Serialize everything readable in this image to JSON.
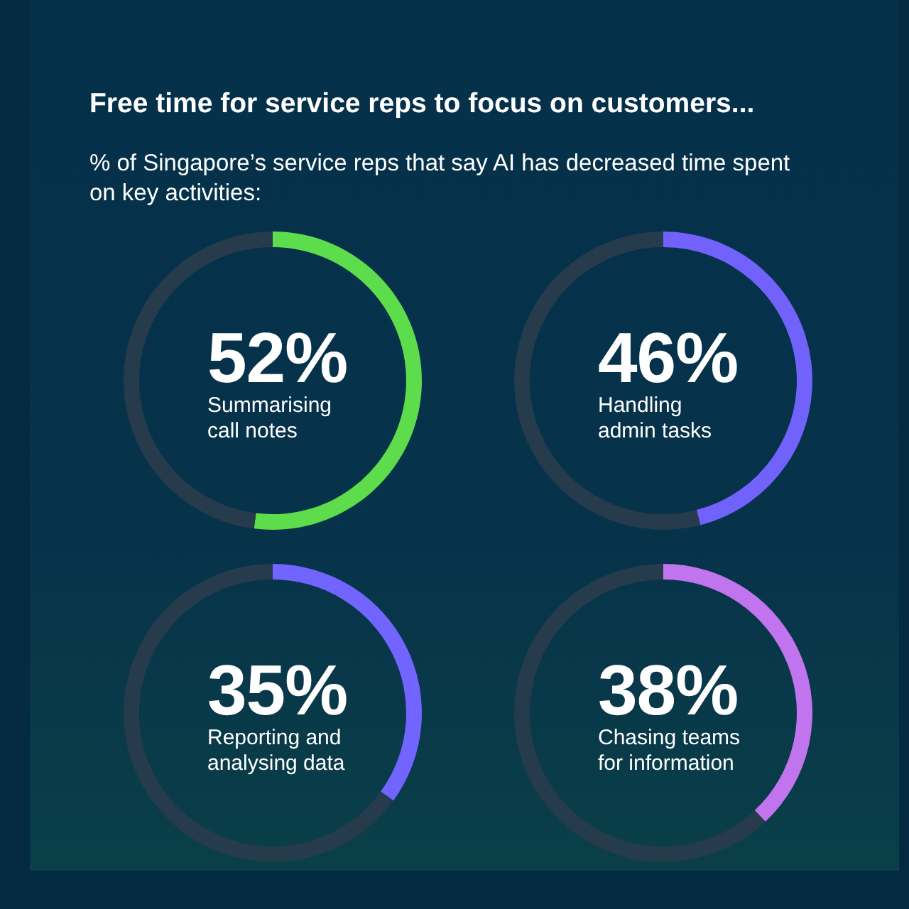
{
  "chart_data": [
    {
      "type": "other",
      "title": "Free time for service reps to focus on customers...",
      "subtitle": "% of Singapore’s service reps that say AI has decreased time spent on key activities:"
    },
    {
      "type": "donut",
      "title": "Summarising call notes",
      "categories": [
        null,
        null
      ],
      "values": [
        52,
        48
      ],
      "colors": [
        "#5ddc4c",
        "#263b4b"
      ],
      "value_labels": [
        "52%",
        null
      ]
    },
    {
      "type": "donut",
      "title": "Handling admin tasks",
      "categories": [
        null,
        null
      ],
      "values": [
        46,
        54
      ],
      "colors": [
        "#7062fb",
        "#263b4b"
      ],
      "value_labels": [
        "46%",
        null
      ]
    },
    {
      "type": "donut",
      "title": "Reporting and analysing data",
      "categories": [
        null,
        null
      ],
      "values": [
        35,
        65
      ],
      "colors": [
        "#7164ff",
        "#263b4b"
      ],
      "value_labels": [
        "35%",
        null
      ]
    },
    {
      "type": "donut",
      "title": "Chasing teams for information",
      "categories": [
        null,
        null
      ],
      "values": [
        38,
        62
      ],
      "colors": [
        "#c074ee",
        "#263b4b"
      ],
      "value_labels": [
        "38%",
        null
      ]
    }
  ]
}
